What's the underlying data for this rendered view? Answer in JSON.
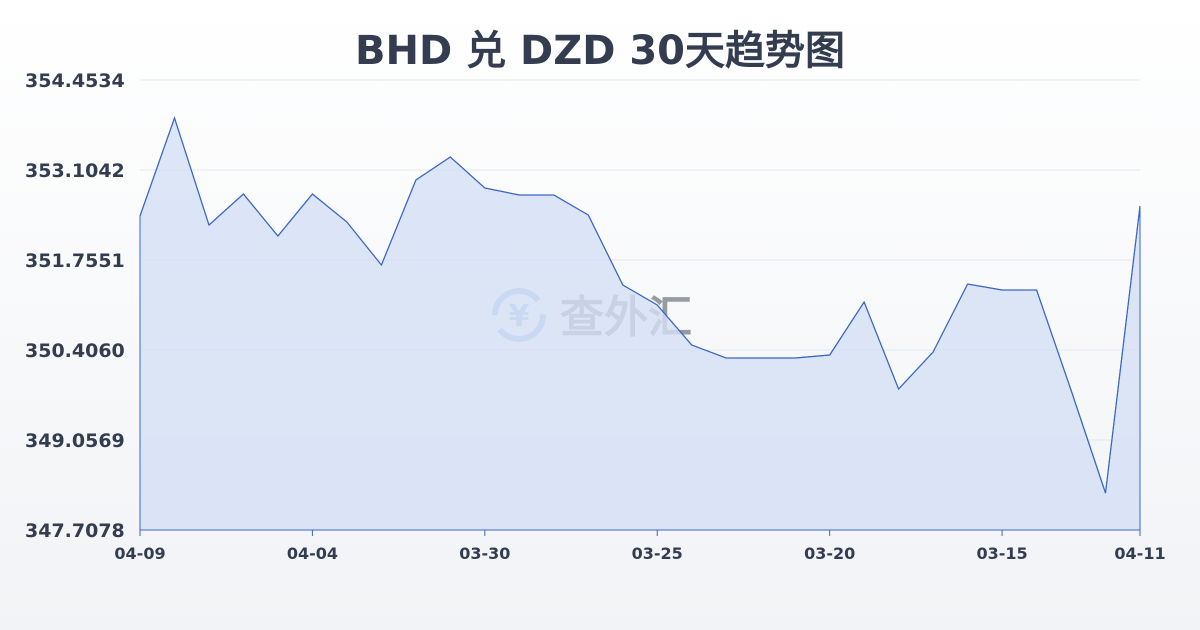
{
  "title": "BHD 兑 DZD 30天趋势图",
  "watermark": "查外汇",
  "colors": {
    "line": "#3a66c8",
    "fill": "#d5e0f5",
    "text": "#333d4f",
    "grid": "#e3e7ee"
  },
  "chart_data": {
    "type": "area",
    "title": "BHD 兑 DZD 30天趋势图",
    "xlabel": "",
    "ylabel": "",
    "ylim": [
      347.7078,
      354.4534
    ],
    "grid": true,
    "yticks": [
      "354.4534",
      "353.1042",
      "351.7551",
      "350.4060",
      "349.0569",
      "347.7078"
    ],
    "xticks": [
      {
        "label": "04-09",
        "index": 0
      },
      {
        "label": "04-04",
        "index": 5
      },
      {
        "label": "03-30",
        "index": 10
      },
      {
        "label": "03-25",
        "index": 15
      },
      {
        "label": "03-20",
        "index": 20
      },
      {
        "label": "03-15",
        "index": 25
      },
      {
        "label": "04-11",
        "index": 29
      }
    ],
    "values": [
      352.4147,
      353.8838,
      352.2798,
      352.7445,
      352.1149,
      352.7445,
      352.3248,
      351.6802,
      352.9544,
      353.2991,
      352.8345,
      352.7295,
      352.7295,
      352.4297,
      351.3804,
      351.0806,
      350.481,
      350.2861,
      350.2861,
      350.2861,
      350.3311,
      351.1256,
      349.8215,
      350.3761,
      351.3954,
      351.3054,
      351.3054,
      349.8065,
      348.2625,
      352.5646
    ]
  }
}
